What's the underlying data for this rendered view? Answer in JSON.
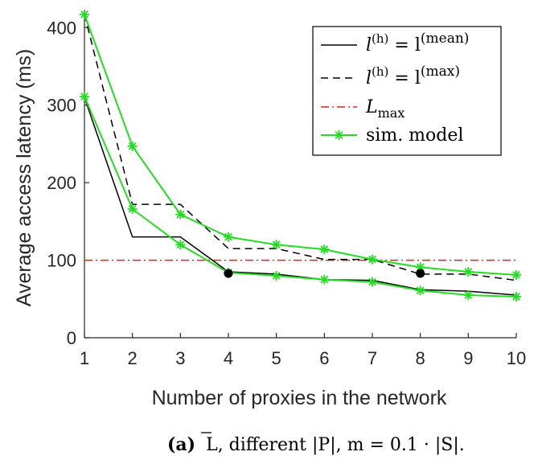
{
  "chart_data": {
    "type": "line",
    "xlabel": "Number of proxies in the network",
    "ylabel": "Average access latency (ms)",
    "xlim": [
      1,
      10
    ],
    "ylim": [
      0,
      420
    ],
    "xticks": [
      1,
      2,
      3,
      4,
      5,
      6,
      7,
      8,
      9,
      10
    ],
    "yticks": [
      0,
      100,
      200,
      300,
      400
    ],
    "grid": false,
    "legend_position": "top-right",
    "series": [
      {
        "name": "l(h) = l(mean)",
        "style": "solid",
        "color": "#000000",
        "x": [
          1,
          2,
          3,
          4,
          5,
          6,
          7,
          8,
          9,
          10
        ],
        "values": [
          310,
          130,
          130,
          85,
          82,
          75,
          74,
          62,
          60,
          55
        ]
      },
      {
        "name": "l(h) = l(max)",
        "style": "dashed",
        "color": "#000000",
        "x": [
          1,
          2,
          3,
          4,
          5,
          6,
          7,
          8,
          9,
          10
        ],
        "values": [
          417,
          172,
          172,
          115,
          115,
          101,
          101,
          82,
          82,
          74
        ]
      },
      {
        "name": "Lmax",
        "style": "dashdot",
        "color": "#e8201c",
        "x": [
          1,
          10
        ],
        "values": [
          100,
          100
        ]
      },
      {
        "name": "sim. model",
        "style": "solid-star",
        "color": "#22dd22",
        "groups": [
          {
            "x": [
              1,
              2,
              3,
              4,
              5,
              6,
              7,
              8,
              9,
              10
            ],
            "values": [
              417,
              247,
              159,
              130,
              120,
              114,
              101,
              91,
              85,
              81
            ]
          },
          {
            "x": [
              1,
              2,
              3,
              4,
              5,
              6,
              7,
              8,
              9,
              10
            ],
            "values": [
              311,
              166,
              120,
              84,
              80,
              75,
              72,
              61,
              55,
              53
            ]
          }
        ]
      }
    ],
    "markers": [
      {
        "x": 4,
        "y": 83
      },
      {
        "x": 8,
        "y": 83
      }
    ],
    "legend": [
      {
        "label_base": "l",
        "label_sup": "(h)",
        "label_eq": " = l",
        "label_sup2": "(mean)",
        "style": "solid",
        "color": "#000000"
      },
      {
        "label_base": "l",
        "label_sup": "(h)",
        "label_eq": " = l",
        "label_sup2": "(max)",
        "style": "dashed",
        "color": "#000000"
      },
      {
        "label_base": "L",
        "label_sub": "max",
        "style": "dashdot",
        "color": "#e8201c"
      },
      {
        "label_text": "sim. model",
        "style": "solid-star",
        "color": "#22dd22"
      }
    ]
  },
  "caption": {
    "prefix": "(a)",
    "text": "L, different |P|, m = 0.1 · |S|."
  }
}
